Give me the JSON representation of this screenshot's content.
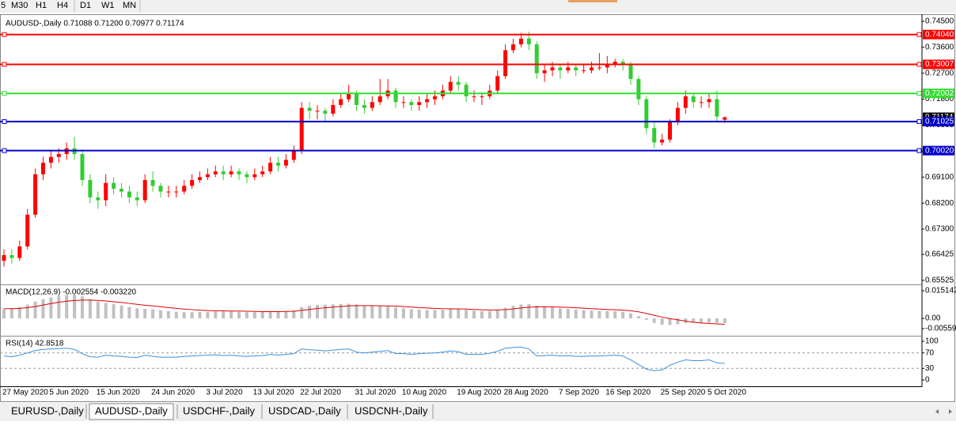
{
  "toolbar": {
    "timeframes": [
      "5",
      "M30",
      "H1",
      "H4",
      "D1",
      "W1",
      "MN"
    ]
  },
  "tabs": [
    "EURUSD-,Daily",
    "AUDUSD-,Daily",
    "USDCHF-,Daily",
    "USDCAD-,Daily",
    "USDCNH-,Daily"
  ],
  "chart_data": [
    {
      "type": "candlestick",
      "title": "AUDUSD-,Daily  0.71088 0.71200 0.70977 0.71174",
      "up_color": "#ff0000",
      "down_color": "#33cc33",
      "ylim": [
        0.6544,
        0.7469
      ],
      "yticks": [
        {
          "value": 0.745,
          "label": "0.74500"
        },
        {
          "value": 0.736,
          "label": "0.73600"
        },
        {
          "value": 0.727,
          "label": "0.72700"
        },
        {
          "value": 0.718,
          "label": "0.71800"
        },
        {
          "value": 0.709,
          "label": "0.70900"
        },
        {
          "value": 0.7,
          "label": "0.70000"
        },
        {
          "value": 0.691,
          "label": "0.69100"
        },
        {
          "value": 0.682,
          "label": "0.68200"
        },
        {
          "value": 0.673,
          "label": "0.67300"
        },
        {
          "value": 0.66425,
          "label": "0.66425"
        },
        {
          "value": 0.65525,
          "label": "0.65525"
        }
      ],
      "price_label": {
        "value": 0.71174,
        "label": "0.71174"
      },
      "levels": [
        {
          "value": 0.7404,
          "label": "0.74040",
          "color": "#ff0000"
        },
        {
          "value": 0.73007,
          "label": "0.73007",
          "color": "#ff0000"
        },
        {
          "value": 0.72002,
          "label": "0.72002",
          "color": "#33dd33"
        },
        {
          "value": 0.71025,
          "label": "0.71025",
          "color": "#0000cc"
        },
        {
          "value": 0.7002,
          "label": "0.70020",
          "color": "#0000cc"
        }
      ],
      "categories": [
        "27 May 2020",
        null,
        null,
        null,
        null,
        null,
        "5 Jun 2020",
        null,
        null,
        null,
        null,
        null,
        "15 Jun 2020",
        null,
        null,
        null,
        null,
        null,
        null,
        "24 Jun 2020",
        null,
        null,
        null,
        null,
        null,
        null,
        "3 Jul 2020",
        null,
        null,
        null,
        null,
        null,
        "13 Jul 2020",
        null,
        null,
        null,
        null,
        null,
        "22 Jul 2020",
        null,
        null,
        null,
        null,
        null,
        null,
        "31 Jul 2020",
        null,
        null,
        null,
        null,
        null,
        "10 Aug 2020",
        null,
        null,
        null,
        null,
        null,
        null,
        "19 Aug 2020",
        null,
        null,
        null,
        null,
        null,
        "28 Aug 2020",
        null,
        null,
        null,
        null,
        null,
        null,
        "7 Sep 2020",
        null,
        null,
        null,
        null,
        null,
        "16 Sep 2020",
        null,
        null,
        null,
        null,
        null,
        null,
        "25 Sep 2020",
        null,
        null,
        null,
        null,
        null,
        "5 Oct 2020",
        null,
        null
      ],
      "ohlc": [
        [
          0.662,
          0.666,
          0.66,
          0.664
        ],
        [
          0.664,
          0.666,
          0.661,
          0.663
        ],
        [
          0.663,
          0.669,
          0.662,
          0.667
        ],
        [
          0.667,
          0.68,
          0.666,
          0.678
        ],
        [
          0.678,
          0.694,
          0.677,
          0.692
        ],
        [
          0.692,
          0.698,
          0.69,
          0.696
        ],
        [
          0.696,
          0.7,
          0.694,
          0.698
        ],
        [
          0.698,
          0.701,
          0.696,
          0.699
        ],
        [
          0.699,
          0.703,
          0.697,
          0.701
        ],
        [
          0.701,
          0.705,
          0.697,
          0.699
        ],
        [
          0.699,
          0.7,
          0.688,
          0.69
        ],
        [
          0.69,
          0.692,
          0.682,
          0.684
        ],
        [
          0.684,
          0.686,
          0.68,
          0.683
        ],
        [
          0.683,
          0.692,
          0.681,
          0.689
        ],
        [
          0.689,
          0.691,
          0.685,
          0.687
        ],
        [
          0.687,
          0.689,
          0.684,
          0.686
        ],
        [
          0.686,
          0.688,
          0.682,
          0.684
        ],
        [
          0.684,
          0.686,
          0.681,
          0.683
        ],
        [
          0.683,
          0.692,
          0.682,
          0.69
        ],
        [
          0.69,
          0.693,
          0.686,
          0.688
        ],
        [
          0.688,
          0.689,
          0.684,
          0.686
        ],
        [
          0.686,
          0.688,
          0.684,
          0.686
        ],
        [
          0.686,
          0.688,
          0.684,
          0.686
        ],
        [
          0.686,
          0.69,
          0.685,
          0.688
        ],
        [
          0.688,
          0.692,
          0.687,
          0.69
        ],
        [
          0.69,
          0.693,
          0.689,
          0.691
        ],
        [
          0.691,
          0.694,
          0.69,
          0.692
        ],
        [
          0.692,
          0.695,
          0.691,
          0.693
        ],
        [
          0.693,
          0.695,
          0.69,
          0.692
        ],
        [
          0.692,
          0.695,
          0.691,
          0.693
        ],
        [
          0.693,
          0.694,
          0.69,
          0.692
        ],
        [
          0.692,
          0.693,
          0.689,
          0.691
        ],
        [
          0.691,
          0.694,
          0.69,
          0.692
        ],
        [
          0.692,
          0.695,
          0.691,
          0.693
        ],
        [
          0.693,
          0.698,
          0.692,
          0.696
        ],
        [
          0.696,
          0.698,
          0.693,
          0.695
        ],
        [
          0.695,
          0.699,
          0.694,
          0.697
        ],
        [
          0.697,
          0.702,
          0.696,
          0.7
        ],
        [
          0.7,
          0.717,
          0.699,
          0.715
        ],
        [
          0.715,
          0.717,
          0.711,
          0.714
        ],
        [
          0.714,
          0.716,
          0.711,
          0.714
        ],
        [
          0.714,
          0.715,
          0.71,
          0.713
        ],
        [
          0.713,
          0.718,
          0.712,
          0.716
        ],
        [
          0.716,
          0.72,
          0.715,
          0.718
        ],
        [
          0.718,
          0.723,
          0.717,
          0.72
        ],
        [
          0.72,
          0.721,
          0.714,
          0.716
        ],
        [
          0.716,
          0.718,
          0.713,
          0.715
        ],
        [
          0.715,
          0.719,
          0.714,
          0.717
        ],
        [
          0.717,
          0.725,
          0.716,
          0.719
        ],
        [
          0.719,
          0.725,
          0.718,
          0.721
        ],
        [
          0.721,
          0.722,
          0.715,
          0.717
        ],
        [
          0.717,
          0.719,
          0.715,
          0.717
        ],
        [
          0.717,
          0.718,
          0.714,
          0.716
        ],
        [
          0.716,
          0.719,
          0.714,
          0.717
        ],
        [
          0.717,
          0.72,
          0.715,
          0.718
        ],
        [
          0.718,
          0.721,
          0.716,
          0.719
        ],
        [
          0.719,
          0.723,
          0.718,
          0.721
        ],
        [
          0.721,
          0.726,
          0.72,
          0.724
        ],
        [
          0.724,
          0.726,
          0.721,
          0.723
        ],
        [
          0.723,
          0.724,
          0.717,
          0.719
        ],
        [
          0.719,
          0.721,
          0.717,
          0.719
        ],
        [
          0.719,
          0.72,
          0.716,
          0.719
        ],
        [
          0.719,
          0.723,
          0.718,
          0.721
        ],
        [
          0.721,
          0.728,
          0.72,
          0.726
        ],
        [
          0.726,
          0.737,
          0.725,
          0.735
        ],
        [
          0.735,
          0.739,
          0.734,
          0.737
        ],
        [
          0.737,
          0.741,
          0.736,
          0.739
        ],
        [
          0.739,
          0.7414,
          0.735,
          0.737
        ],
        [
          0.737,
          0.738,
          0.725,
          0.727
        ],
        [
          0.727,
          0.73,
          0.724,
          0.728
        ],
        [
          0.728,
          0.731,
          0.726,
          0.729
        ],
        [
          0.729,
          0.73,
          0.725,
          0.728
        ],
        [
          0.728,
          0.731,
          0.727,
          0.729
        ],
        [
          0.729,
          0.73,
          0.726,
          0.728
        ],
        [
          0.728,
          0.73,
          0.727,
          0.728
        ],
        [
          0.728,
          0.731,
          0.727,
          0.729
        ],
        [
          0.729,
          0.734,
          0.728,
          0.729
        ],
        [
          0.729,
          0.733,
          0.727,
          0.73
        ],
        [
          0.73,
          0.732,
          0.729,
          0.731
        ],
        [
          0.731,
          0.732,
          0.728,
          0.73
        ],
        [
          0.73,
          0.731,
          0.723,
          0.725
        ],
        [
          0.725,
          0.726,
          0.716,
          0.718
        ],
        [
          0.718,
          0.719,
          0.706,
          0.708
        ],
        [
          0.708,
          0.71,
          0.701,
          0.703
        ],
        [
          0.703,
          0.706,
          0.702,
          0.704
        ],
        [
          0.704,
          0.711,
          0.703,
          0.71
        ],
        [
          0.71,
          0.717,
          0.709,
          0.715
        ],
        [
          0.715,
          0.721,
          0.713,
          0.719
        ],
        [
          0.719,
          0.72,
          0.715,
          0.717
        ],
        [
          0.717,
          0.719,
          0.715,
          0.717
        ],
        [
          0.717,
          0.72,
          0.715,
          0.718
        ],
        [
          0.718,
          0.721,
          0.71,
          0.712
        ],
        [
          0.71088,
          0.712,
          0.70977,
          0.71174
        ]
      ]
    },
    {
      "type": "macd",
      "title": "MACD(12,26,9) -0.002554 -0.003220",
      "color": "#c0c0c0",
      "signal_color": "#e00000",
      "ylim": [
        -0.00948,
        0.01773
      ],
      "yticks": [
        0.015142,
        {
          "value": 0,
          "label": "0.00"
        },
        -0.005595
      ],
      "values": [
        0.005,
        0.0055,
        0.0062,
        0.0075,
        0.0092,
        0.0105,
        0.0115,
        0.0122,
        0.0128,
        0.013,
        0.012,
        0.0105,
        0.0092,
        0.0085,
        0.0078,
        0.007,
        0.0062,
        0.0055,
        0.0052,
        0.005,
        0.0045,
        0.004,
        0.0036,
        0.0034,
        0.0034,
        0.0035,
        0.0036,
        0.0038,
        0.0038,
        0.0038,
        0.0036,
        0.0034,
        0.0034,
        0.0035,
        0.0038,
        0.0038,
        0.004,
        0.0044,
        0.0062,
        0.007,
        0.0074,
        0.0075,
        0.0077,
        0.0079,
        0.008,
        0.0076,
        0.0071,
        0.0068,
        0.0066,
        0.0066,
        0.006,
        0.0055,
        0.005,
        0.0048,
        0.0046,
        0.0046,
        0.0047,
        0.005,
        0.005,
        0.0046,
        0.0042,
        0.004,
        0.0041,
        0.0046,
        0.0058,
        0.0068,
        0.0076,
        0.0078,
        0.007,
        0.0064,
        0.006,
        0.0055,
        0.0052,
        0.0048,
        0.0045,
        0.0043,
        0.0041,
        0.004,
        0.0039,
        0.0036,
        0.0028,
        0.0012,
        -0.0008,
        -0.0025,
        -0.0035,
        -0.0036,
        -0.0032,
        -0.0026,
        -0.0024,
        -0.0024,
        -0.0023,
        -0.0025,
        -0.002554
      ],
      "signal": [
        0.0053,
        0.0053,
        0.0055,
        0.0059,
        0.0065,
        0.0073,
        0.0081,
        0.0088,
        0.0094,
        0.0098,
        0.01,
        0.01,
        0.0098,
        0.0095,
        0.0091,
        0.0087,
        0.0082,
        0.0077,
        0.0072,
        0.0068,
        0.0064,
        0.0059,
        0.0055,
        0.0051,
        0.0048,
        0.0045,
        0.0043,
        0.0042,
        0.0041,
        0.004,
        0.004,
        0.0039,
        0.0038,
        0.0037,
        0.0037,
        0.0037,
        0.0038,
        0.0039,
        0.0044,
        0.0049,
        0.0054,
        0.0058,
        0.0062,
        0.0065,
        0.0068,
        0.007,
        0.007,
        0.007,
        0.0069,
        0.0068,
        0.0067,
        0.0065,
        0.0062,
        0.0059,
        0.0057,
        0.0055,
        0.0053,
        0.0052,
        0.0052,
        0.0051,
        0.0049,
        0.0047,
        0.0046,
        0.0046,
        0.0048,
        0.0052,
        0.0057,
        0.0061,
        0.0063,
        0.0064,
        0.0063,
        0.0062,
        0.006,
        0.0058,
        0.0056,
        0.0053,
        0.0051,
        0.0049,
        0.0047,
        0.0045,
        0.0042,
        0.0036,
        0.0027,
        0.0017,
        0.0007,
        -0.0001,
        -0.0008,
        -0.0015,
        -0.0021,
        -0.0025,
        -0.0028,
        -0.003,
        -0.00322
      ]
    },
    {
      "type": "line",
      "title": "RSI(14) 42.8518",
      "color": "#3d8fdc",
      "ylim": [
        -14.3,
        110.2
      ],
      "yticks": [
        100,
        70,
        30,
        0
      ],
      "levels": [
        70,
        30
      ],
      "values": [
        62,
        60,
        64,
        70,
        76,
        79,
        80,
        81,
        82,
        79,
        68,
        60,
        59,
        64,
        62,
        61,
        59,
        58,
        64,
        61,
        59,
        59,
        59,
        61,
        62,
        63,
        64,
        65,
        63,
        64,
        62,
        61,
        62,
        63,
        66,
        64,
        66,
        68,
        80,
        78,
        77,
        75,
        77,
        79,
        80,
        72,
        70,
        72,
        74,
        76,
        68,
        68,
        66,
        68,
        69,
        70,
        72,
        75,
        73,
        66,
        66,
        66,
        69,
        74,
        82,
        84,
        85,
        80,
        62,
        63,
        64,
        62,
        63,
        61,
        61,
        62,
        62,
        63,
        64,
        62,
        52,
        40,
        28,
        24,
        26,
        38,
        46,
        52,
        50,
        50,
        52,
        44,
        42.8518
      ]
    }
  ]
}
